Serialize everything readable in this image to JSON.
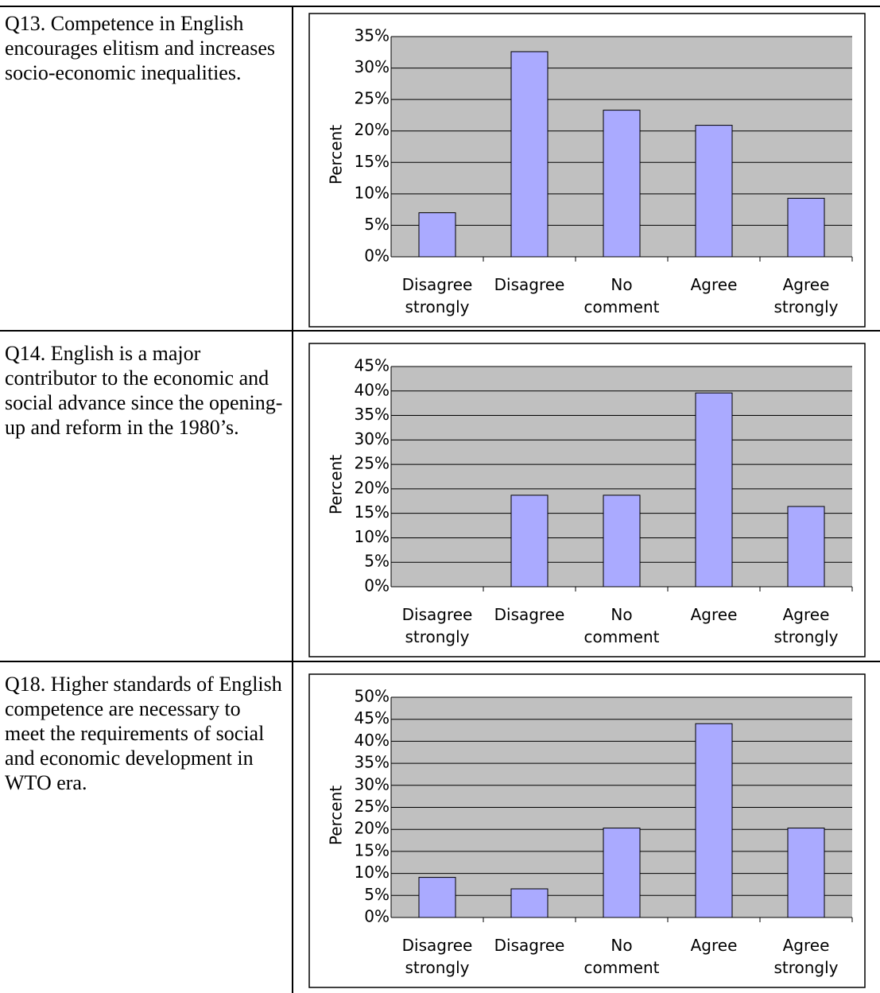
{
  "questions": [
    "Q13. Competence in English encourages elitism and increases socio-economic inequalities.",
    "Q14. English is a major contributor to the economic and social advance since the opening-up and reform in the 1980’s.",
    "Q18. Higher standards of English competence are necessary to meet the requirements of social and economic development in WTO era."
  ],
  "chart_data": [
    {
      "type": "bar",
      "ylabel": "Percent",
      "color": "#aaaaff",
      "grid": true,
      "categories": [
        "Disagree strongly",
        "Disagree",
        "No comment",
        "Agree",
        "Agree strongly"
      ],
      "values": [
        7.0,
        32.6,
        23.3,
        20.9,
        9.3
      ],
      "ylim": [
        0,
        35
      ],
      "yticks": [
        {
          "value": 0,
          "label": "0%"
        },
        {
          "value": 5,
          "label": "5%"
        },
        {
          "value": 10,
          "label": "10%"
        },
        {
          "value": 15,
          "label": "15%"
        },
        {
          "value": 20,
          "label": "20%"
        },
        {
          "value": 25,
          "label": "25%"
        },
        {
          "value": 30,
          "label": "30%"
        },
        {
          "value": 35,
          "label": "35%"
        }
      ]
    },
    {
      "type": "bar",
      "ylabel": "Percent",
      "color": "#aaaaff",
      "grid": true,
      "categories": [
        "Disagree strongly",
        "Disagree",
        "No comment",
        "Agree",
        "Agree strongly"
      ],
      "values": [
        0,
        18.7,
        18.7,
        39.6,
        16.4
      ],
      "ylim": [
        0,
        45
      ],
      "yticks": [
        {
          "value": 0,
          "label": "0%"
        },
        {
          "value": 5,
          "label": "5%"
        },
        {
          "value": 10,
          "label": "10%"
        },
        {
          "value": 15,
          "label": "15%"
        },
        {
          "value": 20,
          "label": "20%"
        },
        {
          "value": 25,
          "label": "25%"
        },
        {
          "value": 30,
          "label": "30%"
        },
        {
          "value": 35,
          "label": "35%"
        },
        {
          "value": 40,
          "label": "40%"
        },
        {
          "value": 45,
          "label": "45%"
        }
      ]
    },
    {
      "type": "bar",
      "ylabel": "Percent",
      "color": "#aaaaff",
      "grid": true,
      "categories": [
        "Disagree strongly",
        "Disagree",
        "No comment",
        "Agree",
        "Agree strongly"
      ],
      "values": [
        9.1,
        6.5,
        20.3,
        44.0,
        20.3
      ],
      "ylim": [
        0,
        50
      ],
      "yticks": [
        {
          "value": 0,
          "label": "0%"
        },
        {
          "value": 5,
          "label": "5%"
        },
        {
          "value": 10,
          "label": "10%"
        },
        {
          "value": 15,
          "label": "15%"
        },
        {
          "value": 20,
          "label": "20%"
        },
        {
          "value": 25,
          "label": "25%"
        },
        {
          "value": 30,
          "label": "30%"
        },
        {
          "value": 35,
          "label": "35%"
        },
        {
          "value": 40,
          "label": "40%"
        },
        {
          "value": 45,
          "label": "45%"
        },
        {
          "value": 50,
          "label": "50%"
        }
      ]
    }
  ]
}
